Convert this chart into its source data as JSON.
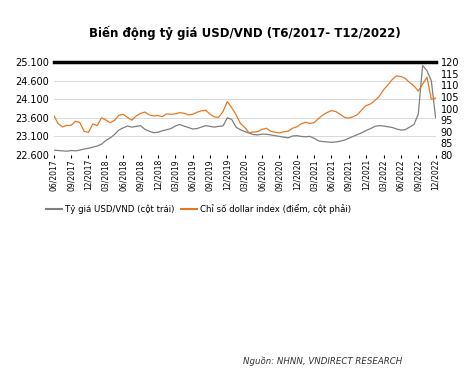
{
  "title": "Biến động tỷ giá USD/VND (T6/2017- T12/2022)",
  "source_text": "Nguồn: NHNN, VNDIRECT RESEARCH",
  "legend_left": "Tỷ giá USD/VND (cột trái)",
  "legend_right": "Chỉ số dollar index (điểm, cột phải)",
  "left_color": "#7f7f7f",
  "right_color": "#E87722",
  "left_ylim": [
    22600,
    25100
  ],
  "right_ylim": [
    80,
    120
  ],
  "left_yticks": [
    22600,
    23100,
    23600,
    24100,
    24600,
    25100
  ],
  "right_yticks": [
    80,
    85,
    90,
    95,
    100,
    105,
    110,
    115,
    120
  ],
  "xtick_labels": [
    "06/2017",
    "09/2017",
    "12/2017",
    "03/2018",
    "06/2018",
    "09/2018",
    "12/2018",
    "03/2019",
    "06/2019",
    "09/2019",
    "12/2019",
    "03/2020",
    "06/2020",
    "09/2020",
    "12/2020",
    "03/2021",
    "06/2021",
    "09/2021",
    "12/2021",
    "03/2022",
    "06/2022",
    "09/2022",
    "12/2022"
  ],
  "vnd_usd": [
    22730,
    22720,
    22710,
    22700,
    22720,
    22710,
    22730,
    22760,
    22780,
    22810,
    22840,
    22890,
    22990,
    23060,
    23150,
    23270,
    23330,
    23380,
    23350,
    23370,
    23390,
    23290,
    23240,
    23200,
    23210,
    23250,
    23280,
    23310,
    23380,
    23420,
    23380,
    23340,
    23300,
    23310,
    23350,
    23390,
    23370,
    23350,
    23370,
    23380,
    23600,
    23560,
    23350,
    23280,
    23230,
    23190,
    23150,
    23140,
    23160,
    23160,
    23140,
    23120,
    23100,
    23080,
    23060,
    23110,
    23120,
    23100,
    23090,
    23100,
    23050,
    22980,
    22960,
    22950,
    22940,
    22950,
    22970,
    23000,
    23050,
    23100,
    23150,
    23200,
    23260,
    23310,
    23370,
    23390,
    23380,
    23360,
    23340,
    23300,
    23270,
    23280,
    23350,
    23420,
    23700,
    25010,
    24870,
    24600,
    23600
  ],
  "dollar_idx": [
    97.1,
    93.5,
    92.1,
    92.7,
    92.8,
    94.5,
    94.0,
    90.2,
    89.7,
    93.4,
    92.6,
    96.0,
    95.1,
    93.9,
    94.9,
    97.1,
    97.5,
    96.2,
    95.0,
    96.8,
    97.9,
    98.5,
    97.3,
    96.8,
    97.0,
    96.5,
    97.7,
    97.5,
    97.7,
    98.2,
    98.0,
    97.3,
    97.5,
    98.4,
    99.0,
    99.3,
    97.6,
    96.4,
    96.2,
    98.7,
    103.0,
    100.4,
    97.4,
    93.6,
    91.9,
    89.6,
    89.9,
    90.1,
    91.0,
    91.5,
    90.2,
    89.8,
    89.5,
    90.0,
    90.2,
    91.5,
    92.1,
    93.4,
    94.1,
    93.6,
    93.9,
    95.7,
    97.2,
    98.3,
    99.1,
    98.7,
    97.5,
    96.2,
    95.9,
    96.5,
    97.4,
    99.5,
    101.3,
    102.0,
    103.5,
    105.2,
    108.1,
    110.2,
    112.5,
    114.1,
    113.8,
    113.0,
    111.2,
    109.8,
    107.5,
    110.5,
    113.5,
    104.0,
    104.5
  ]
}
